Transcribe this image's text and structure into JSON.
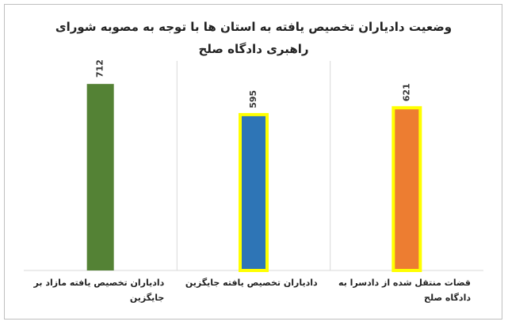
{
  "chart_data": {
    "type": "bar",
    "title": "وضعیت دادیاران تخصیص یافته به استان ها با توجه به مصوبه شورای راهبری دادگاه صلح",
    "categories": [
      "قضات منتقل شده از دادسرا به دادگاه صلح",
      "دادیاران تخصیص یافته جایگزین",
      "دادیاران تخصیص یافته مازاد بر جایگزین"
    ],
    "values": [
      621,
      595,
      712
    ],
    "colors": [
      "#ed7d31",
      "#2e75b6",
      "#548235"
    ],
    "highlighted": [
      true,
      true,
      false
    ],
    "highlight_color": "#ffff00",
    "x_reversed": true,
    "ylim": [
      0,
      800
    ]
  }
}
